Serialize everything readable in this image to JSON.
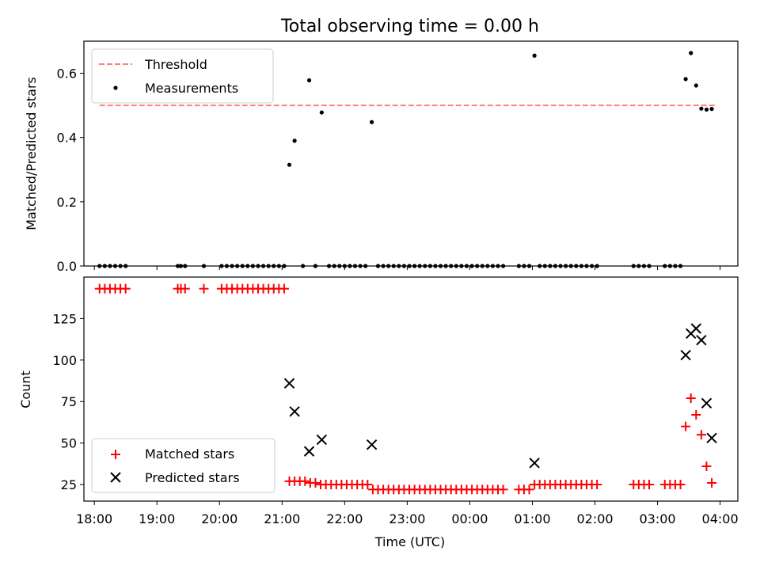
{
  "chart_data": [
    {
      "type": "scatter",
      "title": "Total observing time = 0.00 h",
      "xlabel": "",
      "ylabel": "Matched/Predicted stars",
      "xlim": [
        "17:50",
        "04:17"
      ],
      "ylim": [
        0,
        0.7
      ],
      "yticks": [
        "0.0",
        "0.2",
        "0.4",
        "0.6"
      ],
      "yticks_values": [
        0,
        0.2,
        0.4,
        0.6
      ],
      "legend_position": "upper left",
      "threshold": {
        "name": "Threshold",
        "value": 0.5,
        "x_start": "18:05",
        "x_end": "03:55",
        "color": "#ff7f7f"
      },
      "series": [
        {
          "name": "Measurements",
          "color": "#000000",
          "points": [
            [
              "18:05",
              0.0
            ],
            [
              "18:10",
              0.0
            ],
            [
              "18:15",
              0.0
            ],
            [
              "18:20",
              0.0
            ],
            [
              "18:25",
              0.0
            ],
            [
              "18:30",
              0.0
            ],
            [
              "19:20",
              0.0
            ],
            [
              "19:23",
              0.0
            ],
            [
              "19:27",
              0.0
            ],
            [
              "19:45",
              0.0
            ],
            [
              "20:02",
              0.0
            ],
            [
              "20:07",
              0.0
            ],
            [
              "20:12",
              0.0
            ],
            [
              "20:17",
              0.0
            ],
            [
              "20:22",
              0.0
            ],
            [
              "20:27",
              0.0
            ],
            [
              "20:32",
              0.0
            ],
            [
              "20:37",
              0.0
            ],
            [
              "20:42",
              0.0
            ],
            [
              "20:47",
              0.0
            ],
            [
              "20:52",
              0.0
            ],
            [
              "20:57",
              0.0
            ],
            [
              "21:02",
              0.0
            ],
            [
              "21:07",
              0.315
            ],
            [
              "21:12",
              0.39
            ],
            [
              "21:20",
              0.0
            ],
            [
              "21:26",
              0.578
            ],
            [
              "21:32",
              0.0
            ],
            [
              "21:38",
              0.478
            ],
            [
              "21:45",
              0.0
            ],
            [
              "21:50",
              0.0
            ],
            [
              "21:55",
              0.0
            ],
            [
              "22:00",
              0.0
            ],
            [
              "22:05",
              0.0
            ],
            [
              "22:10",
              0.0
            ],
            [
              "22:15",
              0.0
            ],
            [
              "22:20",
              0.0
            ],
            [
              "22:26",
              0.448
            ],
            [
              "22:32",
              0.0
            ],
            [
              "22:37",
              0.0
            ],
            [
              "22:42",
              0.0
            ],
            [
              "22:47",
              0.0
            ],
            [
              "22:52",
              0.0
            ],
            [
              "22:57",
              0.0
            ],
            [
              "23:02",
              0.0
            ],
            [
              "23:07",
              0.0
            ],
            [
              "23:12",
              0.0
            ],
            [
              "23:17",
              0.0
            ],
            [
              "23:22",
              0.0
            ],
            [
              "23:27",
              0.0
            ],
            [
              "23:32",
              0.0
            ],
            [
              "23:37",
              0.0
            ],
            [
              "23:42",
              0.0
            ],
            [
              "23:47",
              0.0
            ],
            [
              "23:52",
              0.0
            ],
            [
              "23:57",
              0.0
            ],
            [
              "00:02",
              0.0
            ],
            [
              "00:07",
              0.0
            ],
            [
              "00:12",
              0.0
            ],
            [
              "00:17",
              0.0
            ],
            [
              "00:22",
              0.0
            ],
            [
              "00:27",
              0.0
            ],
            [
              "00:32",
              0.0
            ],
            [
              "00:47",
              0.0
            ],
            [
              "00:52",
              0.0
            ],
            [
              "00:57",
              0.0
            ],
            [
              "01:02",
              0.655
            ],
            [
              "01:07",
              0.0
            ],
            [
              "01:12",
              0.0
            ],
            [
              "01:17",
              0.0
            ],
            [
              "01:22",
              0.0
            ],
            [
              "01:27",
              0.0
            ],
            [
              "01:32",
              0.0
            ],
            [
              "01:37",
              0.0
            ],
            [
              "01:42",
              0.0
            ],
            [
              "01:47",
              0.0
            ],
            [
              "01:52",
              0.0
            ],
            [
              "01:57",
              0.0
            ],
            [
              "02:02",
              0.0
            ],
            [
              "02:37",
              0.0
            ],
            [
              "02:42",
              0.0
            ],
            [
              "02:47",
              0.0
            ],
            [
              "02:52",
              0.0
            ],
            [
              "03:07",
              0.0
            ],
            [
              "03:12",
              0.0
            ],
            [
              "03:17",
              0.0
            ],
            [
              "03:22",
              0.0
            ],
            [
              "03:27",
              0.582
            ],
            [
              "03:32",
              0.663
            ],
            [
              "03:37",
              0.562
            ],
            [
              "03:42",
              0.49
            ],
            [
              "03:47",
              0.487
            ],
            [
              "03:52",
              0.489
            ]
          ]
        }
      ]
    },
    {
      "type": "scatter",
      "title": "",
      "xlabel": "Time (UTC)",
      "ylabel": "Count",
      "xlim": [
        "17:50",
        "04:17"
      ],
      "ylim": [
        15,
        150
      ],
      "yticks": [
        "25",
        "50",
        "75",
        "100",
        "125"
      ],
      "yticks_values": [
        25,
        50,
        75,
        100,
        125
      ],
      "xticks": [
        "18:00",
        "19:00",
        "20:00",
        "21:00",
        "22:00",
        "23:00",
        "00:00",
        "01:00",
        "02:00",
        "03:00",
        "04:00"
      ],
      "legend_position": "lower left",
      "series": [
        {
          "name": "Matched stars",
          "marker": "plus",
          "color": "#ff0000",
          "points": [
            [
              "18:05",
              143
            ],
            [
              "18:10",
              143
            ],
            [
              "18:15",
              143
            ],
            [
              "18:20",
              143
            ],
            [
              "18:25",
              143
            ],
            [
              "18:30",
              143
            ],
            [
              "19:20",
              143
            ],
            [
              "19:23",
              143
            ],
            [
              "19:27",
              143
            ],
            [
              "19:45",
              143
            ],
            [
              "20:02",
              143
            ],
            [
              "20:07",
              143
            ],
            [
              "20:12",
              143
            ],
            [
              "20:17",
              143
            ],
            [
              "20:22",
              143
            ],
            [
              "20:27",
              143
            ],
            [
              "20:32",
              143
            ],
            [
              "20:37",
              143
            ],
            [
              "20:42",
              143
            ],
            [
              "20:47",
              143
            ],
            [
              "20:52",
              143
            ],
            [
              "20:57",
              143
            ],
            [
              "21:02",
              143
            ],
            [
              "21:07",
              27
            ],
            [
              "21:12",
              27
            ],
            [
              "21:17",
              27
            ],
            [
              "21:22",
              27
            ],
            [
              "21:27",
              26
            ],
            [
              "21:32",
              26
            ],
            [
              "21:37",
              25
            ],
            [
              "21:42",
              25
            ],
            [
              "21:47",
              25
            ],
            [
              "21:52",
              25
            ],
            [
              "21:57",
              25
            ],
            [
              "22:02",
              25
            ],
            [
              "22:07",
              25
            ],
            [
              "22:12",
              25
            ],
            [
              "22:17",
              25
            ],
            [
              "22:22",
              25
            ],
            [
              "22:27",
              22
            ],
            [
              "22:32",
              22
            ],
            [
              "22:37",
              22
            ],
            [
              "22:42",
              22
            ],
            [
              "22:47",
              22
            ],
            [
              "22:52",
              22
            ],
            [
              "22:57",
              22
            ],
            [
              "23:02",
              22
            ],
            [
              "23:07",
              22
            ],
            [
              "23:12",
              22
            ],
            [
              "23:17",
              22
            ],
            [
              "23:22",
              22
            ],
            [
              "23:27",
              22
            ],
            [
              "23:32",
              22
            ],
            [
              "23:37",
              22
            ],
            [
              "23:42",
              22
            ],
            [
              "23:47",
              22
            ],
            [
              "23:52",
              22
            ],
            [
              "23:57",
              22
            ],
            [
              "00:02",
              22
            ],
            [
              "00:07",
              22
            ],
            [
              "00:12",
              22
            ],
            [
              "00:17",
              22
            ],
            [
              "00:22",
              22
            ],
            [
              "00:27",
              22
            ],
            [
              "00:32",
              22
            ],
            [
              "00:47",
              22
            ],
            [
              "00:52",
              22
            ],
            [
              "00:57",
              22
            ],
            [
              "01:02",
              25
            ],
            [
              "01:07",
              25
            ],
            [
              "01:12",
              25
            ],
            [
              "01:17",
              25
            ],
            [
              "01:22",
              25
            ],
            [
              "01:27",
              25
            ],
            [
              "01:32",
              25
            ],
            [
              "01:37",
              25
            ],
            [
              "01:42",
              25
            ],
            [
              "01:47",
              25
            ],
            [
              "01:52",
              25
            ],
            [
              "01:57",
              25
            ],
            [
              "02:02",
              25
            ],
            [
              "02:37",
              25
            ],
            [
              "02:42",
              25
            ],
            [
              "02:47",
              25
            ],
            [
              "02:52",
              25
            ],
            [
              "03:07",
              25
            ],
            [
              "03:12",
              25
            ],
            [
              "03:17",
              25
            ],
            [
              "03:22",
              25
            ],
            [
              "03:27",
              60
            ],
            [
              "03:32",
              77
            ],
            [
              "03:37",
              67
            ],
            [
              "03:42",
              55
            ],
            [
              "03:47",
              36
            ],
            [
              "03:52",
              26
            ]
          ]
        },
        {
          "name": "Predicted stars",
          "marker": "x",
          "color": "#000000",
          "points": [
            [
              "21:07",
              86
            ],
            [
              "21:12",
              69
            ],
            [
              "21:26",
              45
            ],
            [
              "21:38",
              52
            ],
            [
              "22:26",
              49
            ],
            [
              "01:02",
              38
            ],
            [
              "03:27",
              103
            ],
            [
              "03:32",
              116
            ],
            [
              "03:37",
              119
            ],
            [
              "03:42",
              112
            ],
            [
              "03:47",
              74
            ],
            [
              "03:52",
              53
            ]
          ]
        }
      ]
    }
  ]
}
